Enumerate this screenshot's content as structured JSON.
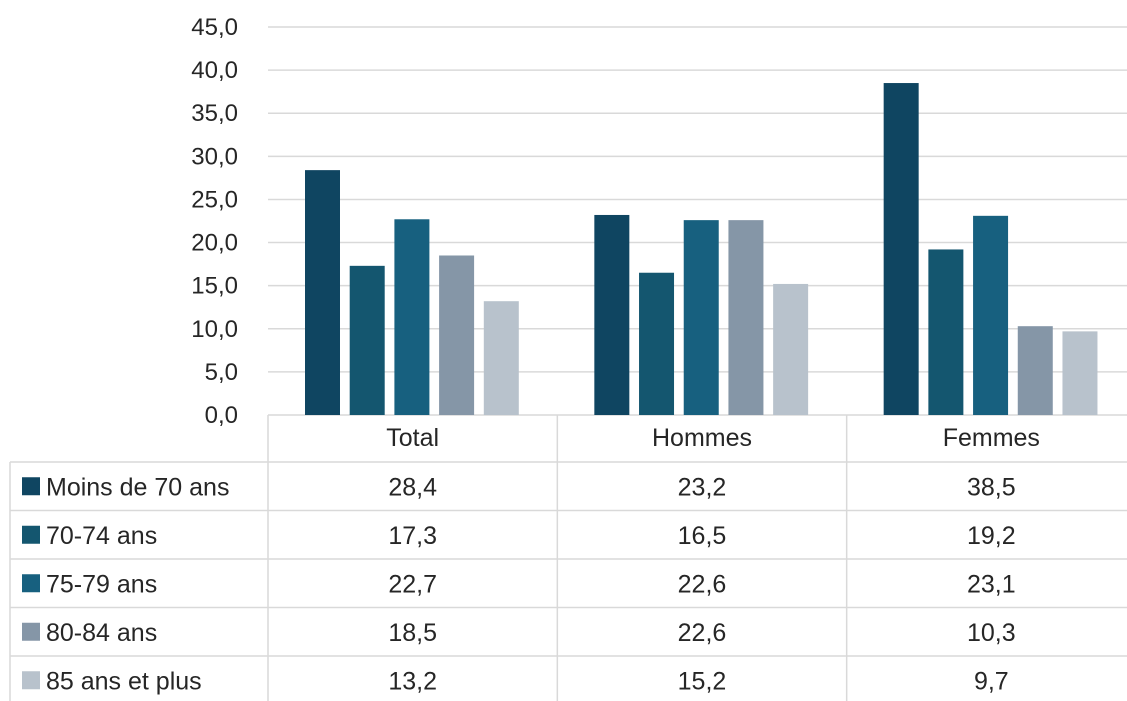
{
  "chart_data": {
    "type": "bar",
    "categories": [
      "Total",
      "Hommes",
      "Femmes"
    ],
    "series": [
      {
        "name": "Moins de 70 ans",
        "color": "#0f4561",
        "values": [
          28.4,
          23.2,
          38.5
        ],
        "labels": [
          "28,4",
          "23,2",
          "38,5"
        ]
      },
      {
        "name": "70-74 ans",
        "color": "#14566f",
        "values": [
          17.3,
          16.5,
          19.2
        ],
        "labels": [
          "17,3",
          "16,5",
          "19,2"
        ]
      },
      {
        "name": "75-79 ans",
        "color": "#17607f",
        "values": [
          22.7,
          22.6,
          23.1
        ],
        "labels": [
          "22,7",
          "22,6",
          "23,1"
        ]
      },
      {
        "name": "80-84 ans",
        "color": "#8596a7",
        "values": [
          18.5,
          22.6,
          10.3
        ],
        "labels": [
          "18,5",
          "22,6",
          "10,3"
        ]
      },
      {
        "name": "85 ans et plus",
        "color": "#b8c2cc",
        "values": [
          13.2,
          15.2,
          9.7
        ],
        "labels": [
          "13,2",
          "15,2",
          "9,7"
        ]
      }
    ],
    "yticks": [
      0,
      5,
      10,
      15,
      20,
      25,
      30,
      35,
      40,
      45
    ],
    "ytick_labels": [
      "0,0",
      "5,0",
      "10,0",
      "15,0",
      "20,0",
      "25,0",
      "30,0",
      "35,0",
      "40,0",
      "45,0"
    ],
    "ylim": [
      0,
      45
    ],
    "grid": true,
    "legend": "data-table"
  }
}
